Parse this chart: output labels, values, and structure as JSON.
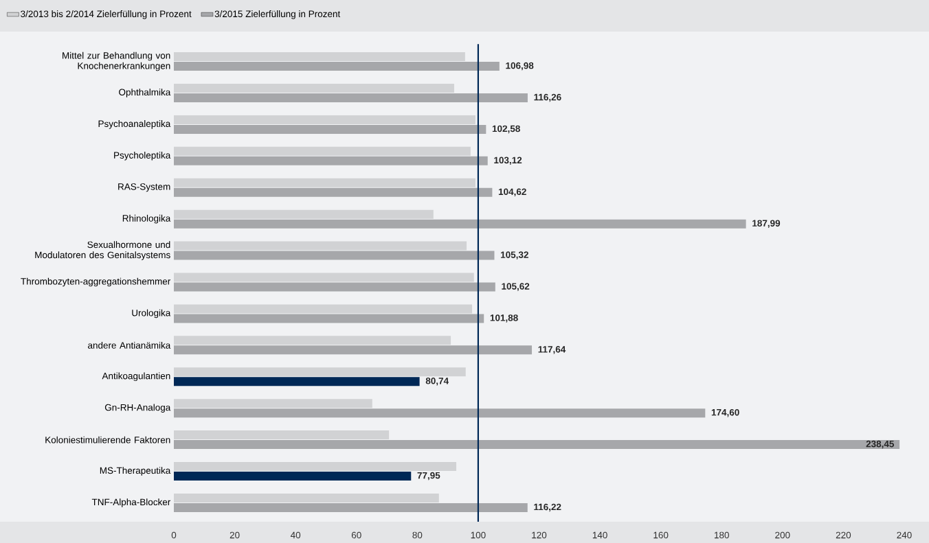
{
  "chart_data": {
    "type": "bar",
    "orientation": "horizontal",
    "categories": [
      "Mittel zur Behandlung von Knochenerkrankungen",
      "Ophthalmika",
      "Psychoanaleptika",
      "Psycholeptika",
      "RAS-System",
      "Rhinologika",
      "Sexualhormone und Modulatoren des Genitalsystems",
      "Thrombozyten-aggregationshemmer",
      "Urologika",
      "andere Antianämika",
      "Antikoagulantien",
      "Gn-RH-Analoga",
      "Koloniestimulierende Faktoren",
      "MS-Therapeutika",
      "TNF-Alpha-Blocker"
    ],
    "series": [
      {
        "name": "3/2013 bis 2/2014 Zielerfüllung in Prozent",
        "color": "#d1d2d4",
        "values": [
          95.7,
          92.1,
          99.1,
          97.5,
          99.1,
          85.3,
          96.2,
          98.6,
          98.0,
          91.0,
          95.9,
          65.2,
          70.7,
          92.8,
          87.1
        ]
      },
      {
        "name": "3/2015 Zielerfüllung in Prozent",
        "color": "#a6a7aa",
        "colors": [
          "#a6a7aa",
          "#a6a7aa",
          "#a6a7aa",
          "#a6a7aa",
          "#a6a7aa",
          "#a6a7aa",
          "#a6a7aa",
          "#a6a7aa",
          "#a6a7aa",
          "#a6a7aa",
          "#002856",
          "#a6a7aa",
          "#a6a7aa",
          "#002856",
          "#a6a7aa"
        ],
        "values": [
          106.98,
          116.26,
          102.58,
          103.12,
          104.62,
          187.99,
          105.32,
          105.62,
          101.88,
          117.64,
          80.74,
          174.6,
          238.45,
          77.95,
          116.22
        ],
        "value_labels": [
          "106,98",
          "116,26",
          "102,58",
          "103,12",
          "104,62",
          "187,99",
          "105,32",
          "105,62",
          "101,88",
          "117,64",
          "80,74",
          "174,60",
          "238,45",
          "77,95",
          "116,22"
        ]
      }
    ],
    "xlim": [
      0,
      240
    ],
    "xticks": [
      0,
      20,
      40,
      60,
      80,
      100,
      120,
      140,
      160,
      180,
      200,
      220,
      240
    ],
    "ref_lines": [
      {
        "axis": "x",
        "value": 100,
        "color": "#002856"
      }
    ],
    "legend": "top left",
    "grid": false
  }
}
